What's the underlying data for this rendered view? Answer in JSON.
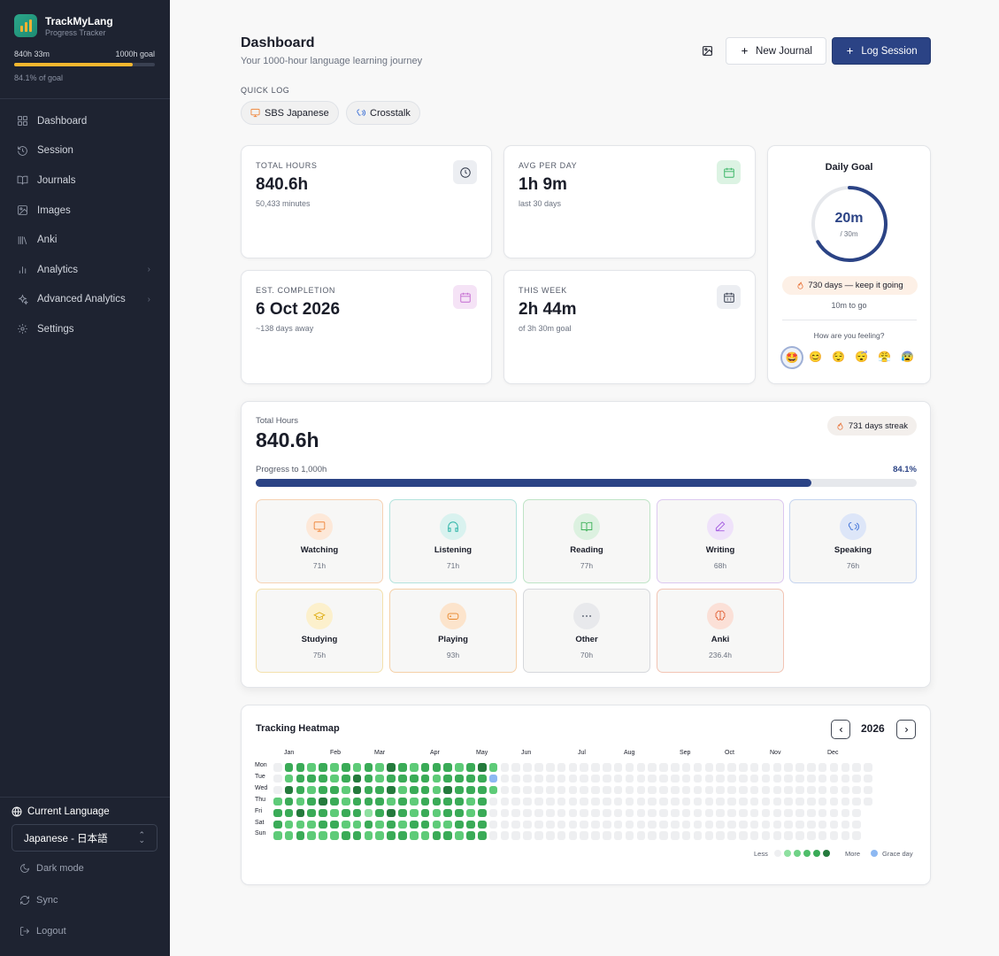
{
  "app": {
    "name": "TrackMyLang",
    "subtitle": "Progress Tracker"
  },
  "goal": {
    "current": "840h 33m",
    "target": "1000h goal",
    "percent_label": "84.1% of goal",
    "fraction": 0.841,
    "bar_color": "#f5b72e"
  },
  "nav": [
    {
      "label": "Dashboard",
      "icon": "grid-icon",
      "chevron": false
    },
    {
      "label": "Session",
      "icon": "history-icon",
      "chevron": false
    },
    {
      "label": "Journals",
      "icon": "book-open-icon",
      "chevron": false
    },
    {
      "label": "Images",
      "icon": "image-icon",
      "chevron": false
    },
    {
      "label": "Anki",
      "icon": "library-icon",
      "chevron": false
    },
    {
      "label": "Analytics",
      "icon": "bar-chart-icon",
      "chevron": true
    },
    {
      "label": "Advanced Analytics",
      "icon": "sparkles-icon",
      "chevron": true
    },
    {
      "label": "Settings",
      "icon": "gear-icon",
      "chevron": false
    }
  ],
  "language": {
    "heading": "Current Language",
    "selected": "Japanese - 日本語"
  },
  "bottom": {
    "dark_mode": "Dark mode",
    "sync": "Sync",
    "logout": "Logout"
  },
  "header": {
    "title": "Dashboard",
    "subtitle": "Your 1000-hour language learning journey",
    "new_journal": "New Journal",
    "log_session": "Log Session"
  },
  "quick_log": {
    "label": "QUICK LOG",
    "items": [
      {
        "label": "SBS Japanese",
        "icon": "monitor-icon"
      },
      {
        "label": "Crosstalk",
        "icon": "speaking-icon"
      }
    ]
  },
  "stats": {
    "total_hours": {
      "label": "TOTAL HOURS",
      "value": "840.6h",
      "sub": "50,433 minutes",
      "icon": "clock-icon"
    },
    "avg_per_day": {
      "label": "AVG PER DAY",
      "value": "1h 9m",
      "sub": "last 30 days",
      "icon": "calendar-icon"
    },
    "est_completion": {
      "label": "EST. COMPLETION",
      "value": "6 Oct 2026",
      "sub": "~138 days away",
      "icon": "calendar-icon"
    },
    "this_week": {
      "label": "THIS WEEK",
      "value": "2h 44m",
      "sub": "of 3h 30m goal",
      "icon": "calendar-grid-icon"
    }
  },
  "daily_goal": {
    "title": "Daily Goal",
    "value": "20m",
    "target": "/ 30m",
    "fraction": 0.667,
    "streak": "730 days — keep it going",
    "to_go": "10m to go",
    "feeling_q": "How are you feeling?",
    "emojis": [
      "🤩",
      "😊",
      "😌",
      "😴",
      "😤",
      "😰"
    ],
    "selected_emoji": 0
  },
  "progress": {
    "label": "Total Hours",
    "value": "840.6h",
    "streak": "731 days streak",
    "bar_label": "Progress to 1,000h",
    "pct": "84.1%",
    "fraction": 0.841
  },
  "categories": [
    {
      "name": "Watching",
      "hours": "71h",
      "icon": "monitor-icon",
      "color": "#f0883e",
      "bg": "#fde8d8",
      "border": "#f6d2b3"
    },
    {
      "name": "Listening",
      "hours": "71h",
      "icon": "headphones-icon",
      "color": "#2ab3a6",
      "bg": "#d9f2ef",
      "border": "#b3e3dd"
    },
    {
      "name": "Reading",
      "hours": "77h",
      "icon": "book-open-icon",
      "color": "#3fb25a",
      "bg": "#dcf1e0",
      "border": "#bfe4c6"
    },
    {
      "name": "Writing",
      "hours": "68h",
      "icon": "pen-icon",
      "color": "#a55ee0",
      "bg": "#efe2fa",
      "border": "#dcc8f0"
    },
    {
      "name": "Speaking",
      "hours": "76h",
      "icon": "speaking-icon",
      "color": "#3b6fd6",
      "bg": "#dde6f8",
      "border": "#c5d4ef"
    },
    {
      "name": "Studying",
      "hours": "75h",
      "icon": "graduation-cap-icon",
      "color": "#e0b01c",
      "bg": "#fcf0cc",
      "border": "#f4e1ad"
    },
    {
      "name": "Playing",
      "hours": "93h",
      "icon": "gamepad-icon",
      "color": "#e8862a",
      "bg": "#fce4cc",
      "border": "#f5d0a8"
    },
    {
      "name": "Other",
      "hours": "70h",
      "icon": "more-icon",
      "color": "#6b7280",
      "bg": "#e8e9ec",
      "border": "#d6d8dc"
    },
    {
      "name": "Anki",
      "hours": "236.4h",
      "icon": "brain-icon",
      "color": "#e2643a",
      "bg": "#fbe0d7",
      "border": "#f2c4b4"
    }
  ],
  "heatmap": {
    "title": "Tracking Heatmap",
    "year": "2026",
    "months": [
      "Jan",
      "Feb",
      "Mar",
      "Apr",
      "May",
      "Jun",
      "Jul",
      "Aug",
      "Sep",
      "Oct",
      "Nov",
      "Dec"
    ],
    "days": [
      "Mon",
      "Tue",
      "Wed",
      "Thu",
      "Fri",
      "Sat",
      "Sun"
    ],
    "legend_less": "Less",
    "legend_more": "More",
    "legend_grace": "Grace day",
    "level_colors": [
      "#eeeff1",
      "#8ee0a0",
      "#5ecb78",
      "#3aab57",
      "#247a3c"
    ],
    "grace_color": "#8db8f2",
    "columns": [
      [
        0,
        0,
        0,
        2,
        3,
        3,
        2
      ],
      [
        3,
        2,
        4,
        3,
        3,
        2,
        2
      ],
      [
        3,
        3,
        3,
        2,
        4,
        2,
        3
      ],
      [
        2,
        3,
        2,
        3,
        3,
        2,
        2
      ],
      [
        3,
        3,
        3,
        4,
        3,
        3,
        2
      ],
      [
        2,
        2,
        3,
        3,
        2,
        3,
        2
      ],
      [
        3,
        3,
        2,
        2,
        3,
        2,
        3
      ],
      [
        2,
        4,
        4,
        3,
        3,
        2,
        3
      ],
      [
        3,
        3,
        3,
        3,
        1,
        3,
        2
      ],
      [
        2,
        2,
        3,
        3,
        3,
        2,
        2
      ],
      [
        4,
        3,
        4,
        2,
        4,
        3,
        3
      ],
      [
        3,
        3,
        2,
        3,
        3,
        2,
        3
      ],
      [
        2,
        3,
        3,
        2,
        2,
        3,
        2
      ],
      [
        3,
        3,
        3,
        3,
        3,
        3,
        2
      ],
      [
        3,
        2,
        2,
        3,
        2,
        2,
        3
      ],
      [
        3,
        3,
        4,
        3,
        3,
        2,
        3
      ],
      [
        2,
        3,
        3,
        3,
        3,
        3,
        2
      ],
      [
        3,
        3,
        3,
        2,
        2,
        3,
        3
      ],
      [
        4,
        3,
        3,
        3,
        3,
        3,
        3
      ],
      [
        2,
        5,
        2,
        0,
        0,
        0,
        0
      ]
    ],
    "total_columns": 53
  }
}
